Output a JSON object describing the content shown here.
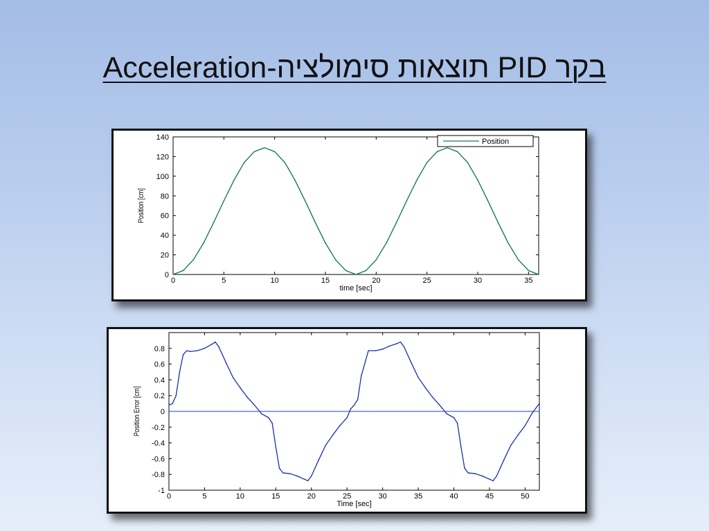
{
  "slide": {
    "title": "בקר PID תוצאות סימולציה-Acceleration"
  },
  "colors": {
    "position_line": "#1a7a55",
    "error_line": "#1a2fb0",
    "zero_line": "#2a3fc8"
  },
  "chart_data": [
    {
      "type": "line",
      "xlabel": "time [sec]",
      "ylabel": "Position [cm]",
      "xlim": [
        0,
        36
      ],
      "ylim": [
        0,
        140
      ],
      "xticks": [
        0,
        5,
        10,
        15,
        20,
        25,
        30,
        35
      ],
      "yticks": [
        0,
        20,
        40,
        60,
        80,
        100,
        120,
        140
      ],
      "legend_position": "top-right",
      "series": [
        {
          "name": "Position",
          "x": [
            0,
            1,
            2,
            3,
            4,
            5,
            6,
            7,
            8,
            9,
            10,
            11,
            12,
            13,
            14,
            15,
            16,
            17,
            18,
            19,
            20,
            21,
            22,
            23,
            24,
            25,
            26,
            27,
            28,
            29,
            30,
            31,
            32,
            33,
            34,
            35,
            36
          ],
          "y": [
            0,
            4,
            15,
            32,
            53,
            75,
            96,
            114,
            125,
            129,
            125,
            114,
            96,
            75,
            53,
            32,
            15,
            4,
            0,
            4,
            15,
            32,
            53,
            75,
            96,
            114,
            125,
            129,
            125,
            114,
            96,
            75,
            53,
            32,
            15,
            4,
            0
          ]
        }
      ]
    },
    {
      "type": "line",
      "xlabel": "Time [sec]",
      "ylabel": "Position Error [cm]",
      "xlim": [
        0,
        52
      ],
      "ylim": [
        -1,
        1
      ],
      "xticks": [
        0,
        5,
        10,
        15,
        20,
        25,
        30,
        35,
        40,
        45,
        50
      ],
      "yticks": [
        -1,
        -0.8,
        -0.6,
        -0.4,
        -0.2,
        0,
        0.2,
        0.4,
        0.6,
        0.8
      ],
      "series": [
        {
          "name": "",
          "x": [
            0,
            0.5,
            1,
            1.5,
            2,
            2.5,
            3,
            4,
            5,
            6,
            6.5,
            7,
            8,
            9,
            10,
            11,
            12,
            13,
            14,
            14.5,
            15,
            15.5,
            16,
            17,
            18,
            19,
            19.5,
            20,
            21,
            22,
            23,
            24,
            25,
            25.5,
            26,
            26.5,
            27,
            28,
            29,
            30,
            31,
            32,
            32.5,
            33,
            34,
            35,
            36,
            37,
            38,
            39,
            40,
            40.5,
            41,
            41.5,
            42,
            43,
            44,
            45,
            45.5,
            46,
            47,
            48,
            49,
            50,
            51,
            52
          ],
          "y": [
            0.08,
            0.1,
            0.2,
            0.5,
            0.72,
            0.77,
            0.76,
            0.77,
            0.8,
            0.85,
            0.88,
            0.82,
            0.62,
            0.43,
            0.3,
            0.18,
            0.08,
            -0.03,
            -0.08,
            -0.15,
            -0.45,
            -0.72,
            -0.78,
            -0.79,
            -0.82,
            -0.86,
            -0.88,
            -0.82,
            -0.62,
            -0.43,
            -0.3,
            -0.18,
            -0.08,
            0.03,
            0.08,
            0.15,
            0.45,
            0.77,
            0.77,
            0.79,
            0.83,
            0.86,
            0.88,
            0.82,
            0.62,
            0.43,
            0.3,
            0.18,
            0.08,
            -0.03,
            -0.08,
            -0.15,
            -0.45,
            -0.72,
            -0.78,
            -0.79,
            -0.82,
            -0.86,
            -0.88,
            -0.82,
            -0.62,
            -0.43,
            -0.3,
            -0.18,
            -0.02,
            0.1
          ]
        },
        {
          "name": "",
          "x": [
            0,
            52
          ],
          "y": [
            0,
            0
          ]
        }
      ]
    }
  ]
}
